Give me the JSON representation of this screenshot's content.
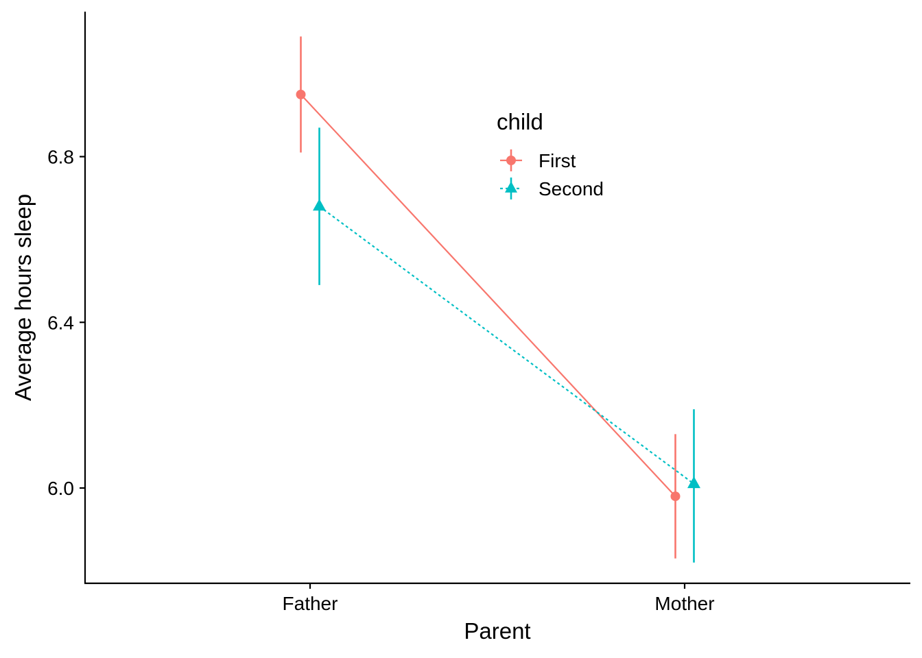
{
  "chart_data": {
    "type": "line",
    "xlabel": "Parent",
    "ylabel": "Average hours sleep",
    "categories": [
      "Father",
      "Mother"
    ],
    "ylim": [
      5.77,
      7.15
    ],
    "yticks": [
      6.0,
      6.4,
      6.8
    ],
    "ytick_labels": [
      "6.0",
      "6.4",
      "6.8"
    ],
    "grid": false,
    "legend": {
      "title": "child",
      "placement": "top-center"
    },
    "series": [
      {
        "name": "First",
        "color": "#F8766D",
        "marker": "circle",
        "line_style": "solid",
        "values": [
          6.95,
          5.98
        ],
        "lower": [
          6.81,
          5.83
        ],
        "upper": [
          7.09,
          6.13
        ]
      },
      {
        "name": "Second",
        "color": "#00BFC4",
        "marker": "triangle",
        "line_style": "dotted",
        "values": [
          6.68,
          6.01
        ],
        "lower": [
          6.49,
          5.82
        ],
        "upper": [
          6.87,
          6.19
        ]
      }
    ]
  }
}
